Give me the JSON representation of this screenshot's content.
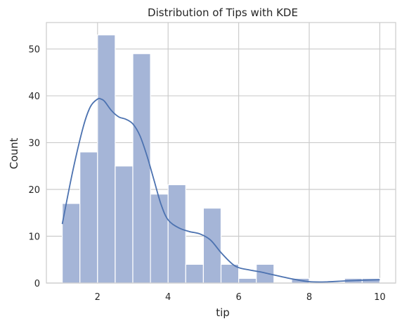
{
  "chart_data": {
    "type": "bar",
    "title": "Distribution of Tips with KDE",
    "xlabel": "tip",
    "ylabel": "Count",
    "xlim": [
      0.55,
      10.45
    ],
    "ylim": [
      0,
      55.65
    ],
    "xticks": [
      2,
      4,
      6,
      8,
      10
    ],
    "yticks": [
      0,
      10,
      20,
      30,
      40,
      50
    ],
    "grid": true,
    "bar_color": "#a5b5d7",
    "kde_color": "#4c72b0",
    "bins": [
      {
        "x0": 1.0,
        "x1": 1.5,
        "count": 17
      },
      {
        "x0": 1.5,
        "x1": 2.0,
        "count": 28
      },
      {
        "x0": 2.0,
        "x1": 2.5,
        "count": 53
      },
      {
        "x0": 2.5,
        "x1": 3.0,
        "count": 25
      },
      {
        "x0": 3.0,
        "x1": 3.5,
        "count": 49
      },
      {
        "x0": 3.5,
        "x1": 4.0,
        "count": 19
      },
      {
        "x0": 4.0,
        "x1": 4.5,
        "count": 21
      },
      {
        "x0": 4.5,
        "x1": 5.0,
        "count": 4
      },
      {
        "x0": 5.0,
        "x1": 5.5,
        "count": 16
      },
      {
        "x0": 5.5,
        "x1": 6.0,
        "count": 4
      },
      {
        "x0": 6.0,
        "x1": 6.5,
        "count": 1
      },
      {
        "x0": 6.5,
        "x1": 7.0,
        "count": 4
      },
      {
        "x0": 7.0,
        "x1": 7.5,
        "count": 0
      },
      {
        "x0": 7.5,
        "x1": 8.0,
        "count": 1
      },
      {
        "x0": 8.0,
        "x1": 8.5,
        "count": 0
      },
      {
        "x0": 8.5,
        "x1": 9.0,
        "count": 0
      },
      {
        "x0": 9.0,
        "x1": 9.5,
        "count": 1
      },
      {
        "x0": 9.5,
        "x1": 10.0,
        "count": 1
      }
    ],
    "kde": {
      "x": [
        1.0,
        1.3,
        1.6,
        1.8,
        2.0,
        2.1,
        2.2,
        2.4,
        2.6,
        2.8,
        3.0,
        3.2,
        3.4,
        3.6,
        3.8,
        4.0,
        4.3,
        4.6,
        4.9,
        5.2,
        5.5,
        5.8,
        6.0,
        6.3,
        6.6,
        6.9,
        7.2,
        7.5,
        8.0,
        8.5,
        9.0,
        9.5,
        10.0
      ],
      "y": [
        12.6,
        24.0,
        33.5,
        37.7,
        39.3,
        39.3,
        38.8,
        36.8,
        35.5,
        35.0,
        34.0,
        31.5,
        27.2,
        22.0,
        16.8,
        13.5,
        11.8,
        11.0,
        10.5,
        9.2,
        6.5,
        4.2,
        3.3,
        2.8,
        2.4,
        1.9,
        1.4,
        0.9,
        0.3,
        0.25,
        0.45,
        0.6,
        0.7
      ]
    }
  }
}
